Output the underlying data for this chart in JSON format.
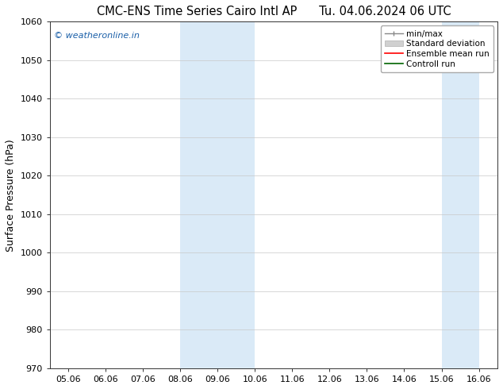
{
  "title_left": "CMC-ENS Time Series Cairo Intl AP",
  "title_right": "Tu. 04.06.2024 06 UTC",
  "ylabel": "Surface Pressure (hPa)",
  "ylim": [
    970,
    1060
  ],
  "yticks": [
    970,
    980,
    990,
    1000,
    1010,
    1020,
    1030,
    1040,
    1050,
    1060
  ],
  "xtick_labels": [
    "05.06",
    "06.06",
    "07.06",
    "08.06",
    "09.06",
    "10.06",
    "11.06",
    "12.06",
    "13.06",
    "14.06",
    "15.06",
    "16.06"
  ],
  "x_values": [
    0,
    1,
    2,
    3,
    4,
    5,
    6,
    7,
    8,
    9,
    10,
    11
  ],
  "shaded_bands": [
    {
      "x_start": 3,
      "x_end": 5
    },
    {
      "x_start": 10,
      "x_end": 11
    }
  ],
  "band_color": "#daeaf7",
  "watermark_text": "© weatheronline.in",
  "watermark_color": "#1a5fa8",
  "bg_color": "#ffffff",
  "grid_color": "#c8c8c8",
  "x_min": -0.5,
  "x_max": 11.5,
  "title_fontsize": 10.5,
  "ylabel_fontsize": 9,
  "tick_fontsize": 8,
  "watermark_fontsize": 8,
  "legend_fontsize": 7.5
}
